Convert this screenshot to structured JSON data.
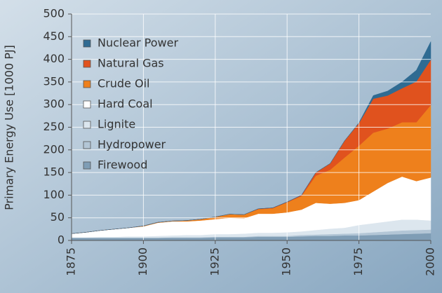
{
  "chart_data": {
    "type": "stacked-area",
    "ylabel": "Primary Energy Use  [1000 PJ]",
    "x": [
      1875,
      1880,
      1885,
      1890,
      1895,
      1900,
      1905,
      1910,
      1915,
      1920,
      1925,
      1930,
      1935,
      1940,
      1945,
      1950,
      1955,
      1960,
      1965,
      1970,
      1975,
      1980,
      1985,
      1990,
      1995,
      2000
    ],
    "series": [
      {
        "name": "Firewood",
        "color": "#7f9db5",
        "values": [
          6,
          6,
          6,
          6,
          6,
          6,
          6,
          6,
          6,
          6,
          7,
          7,
          7,
          8,
          8,
          8,
          9,
          10,
          10,
          11,
          11,
          12,
          13,
          14,
          15,
          16
        ]
      },
      {
        "name": "Hydropower",
        "color": "#b3c6d6",
        "values": [
          0,
          0,
          0,
          0,
          0,
          0,
          0,
          1,
          1,
          1,
          1,
          1,
          1,
          2,
          2,
          2,
          3,
          3,
          4,
          4,
          5,
          6,
          7,
          8,
          8,
          8
        ]
      },
      {
        "name": "Lignite",
        "color": "#dce6ee",
        "values": [
          1,
          1,
          2,
          2,
          3,
          3,
          4,
          4,
          5,
          5,
          6,
          6,
          7,
          7,
          7,
          8,
          8,
          10,
          12,
          13,
          18,
          20,
          22,
          24,
          23,
          20
        ]
      },
      {
        "name": "Hard Coal",
        "color": "#ffffff",
        "values": [
          8,
          11,
          14,
          17,
          19,
          22,
          29,
          31,
          30,
          32,
          33,
          36,
          34,
          42,
          42,
          44,
          48,
          60,
          55,
          55,
          55,
          70,
          85,
          95,
          85,
          95
        ]
      },
      {
        "name": "Crude Oil",
        "color": "#ee801c",
        "values": [
          0,
          0,
          0,
          0,
          0,
          1,
          1,
          1,
          2,
          3,
          5,
          8,
          8,
          10,
          12,
          22,
          30,
          60,
          75,
          100,
          120,
          130,
          120,
          120,
          130,
          160
        ]
      },
      {
        "name": "Natural Gas",
        "color": "#e0521e",
        "values": [
          0,
          0,
          0,
          0,
          0,
          0,
          0,
          0,
          0,
          0,
          0,
          0,
          0,
          1,
          1,
          1,
          2,
          7,
          14,
          37,
          50,
          75,
          73,
          75,
          90,
          100
        ]
      },
      {
        "name": "Nuclear Power",
        "color": "#2f6b92",
        "values": [
          0,
          0,
          0,
          0,
          0,
          0,
          0,
          0,
          0,
          0,
          0,
          0,
          0,
          0,
          0,
          0,
          0,
          0,
          0,
          0,
          1,
          7,
          10,
          14,
          25,
          40
        ]
      }
    ],
    "xlim": [
      1875,
      2000
    ],
    "ylim": [
      0,
      500
    ],
    "xticks": [
      1875,
      1900,
      1925,
      1950,
      1975,
      2000
    ],
    "yticks": [
      0,
      50,
      100,
      150,
      200,
      250,
      300,
      350,
      400,
      450,
      500
    ],
    "grid": true,
    "legend": "upper left"
  }
}
